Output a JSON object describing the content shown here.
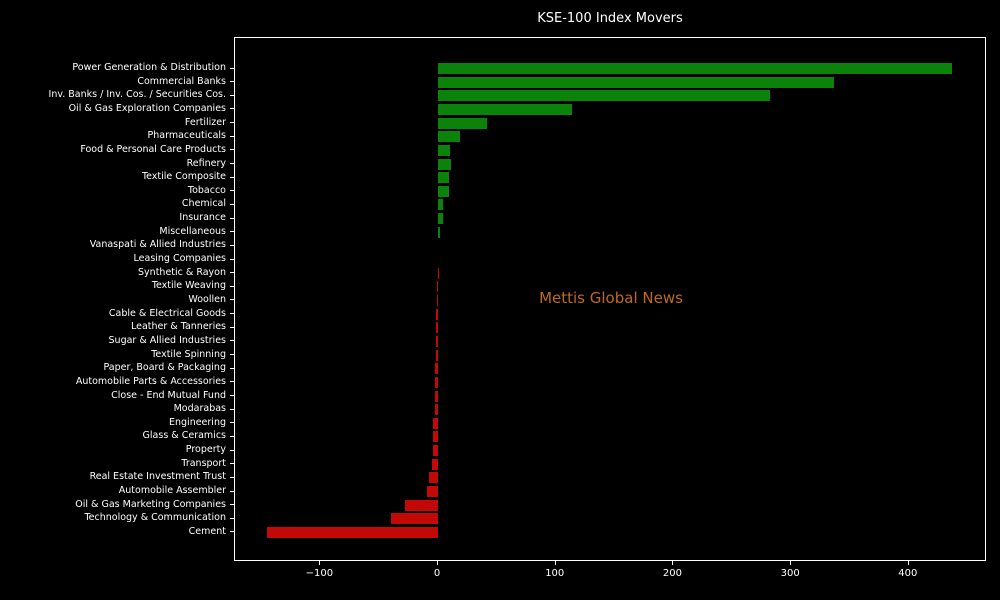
{
  "title": "KSE-100 Index Movers",
  "watermark": {
    "text": "Mettis Global News",
    "color": "#c1691b"
  },
  "colors": {
    "background": "#000000",
    "text": "#ffffff",
    "axis": "#ffffff",
    "positive_bar": "#0b830b",
    "negative_bar": "#c30808"
  },
  "chart_data": {
    "type": "bar",
    "orientation": "horizontal",
    "title": "KSE-100 Index Movers",
    "xlabel": "",
    "ylabel": "",
    "grid": false,
    "xlim": [
      -172.5,
      466.4
    ],
    "xticks": [
      {
        "label": "−100",
        "value": -100
      },
      {
        "label": "0",
        "value": 0
      },
      {
        "label": "100",
        "value": 100
      },
      {
        "label": "200",
        "value": 200
      },
      {
        "label": "300",
        "value": 300
      },
      {
        "label": "400",
        "value": 400
      }
    ],
    "categories": [
      "Power Generation & Distribution",
      "Commercial Banks",
      "Inv. Banks / Inv. Cos. / Securities Cos.",
      "Oil & Gas Exploration Companies",
      "Fertilizer",
      "Pharmaceuticals",
      "Food & Personal Care Products",
      "Refinery",
      "Textile Composite",
      "Tobacco",
      "Chemical",
      "Insurance",
      "Miscellaneous",
      "Vanaspati & Allied Industries",
      "Leasing Companies",
      "Synthetic & Rayon",
      "Textile Weaving",
      "Woollen",
      "Cable & Electrical Goods",
      "Leather & Tanneries",
      "Sugar & Allied Industries",
      "Textile Spinning",
      "Paper, Board & Packaging",
      "Automobile Parts & Accessories",
      "Close - End Mutual Fund",
      "Modarabas",
      "Engineering",
      "Glass & Ceramics",
      "Property",
      "Transport",
      "Real Estate Investment Trust",
      "Automobile Assembler",
      "Oil & Gas Marketing Companies",
      "Technology & Communication",
      "Cement"
    ],
    "values": [
      437,
      336,
      282,
      114,
      42,
      19,
      10.2,
      11,
      9.2,
      9.2,
      4.5,
      4.5,
      1.7,
      0.05,
      0.03,
      -0.15,
      -1.2,
      -1.3,
      -1.4,
      -1.5,
      -1.6,
      -1.8,
      -2.2,
      -2.5,
      -2.8,
      -3.0,
      -3.9,
      -4.2,
      -4.2,
      -5.3,
      -7.5,
      -9.5,
      -28,
      -40,
      -145
    ]
  }
}
